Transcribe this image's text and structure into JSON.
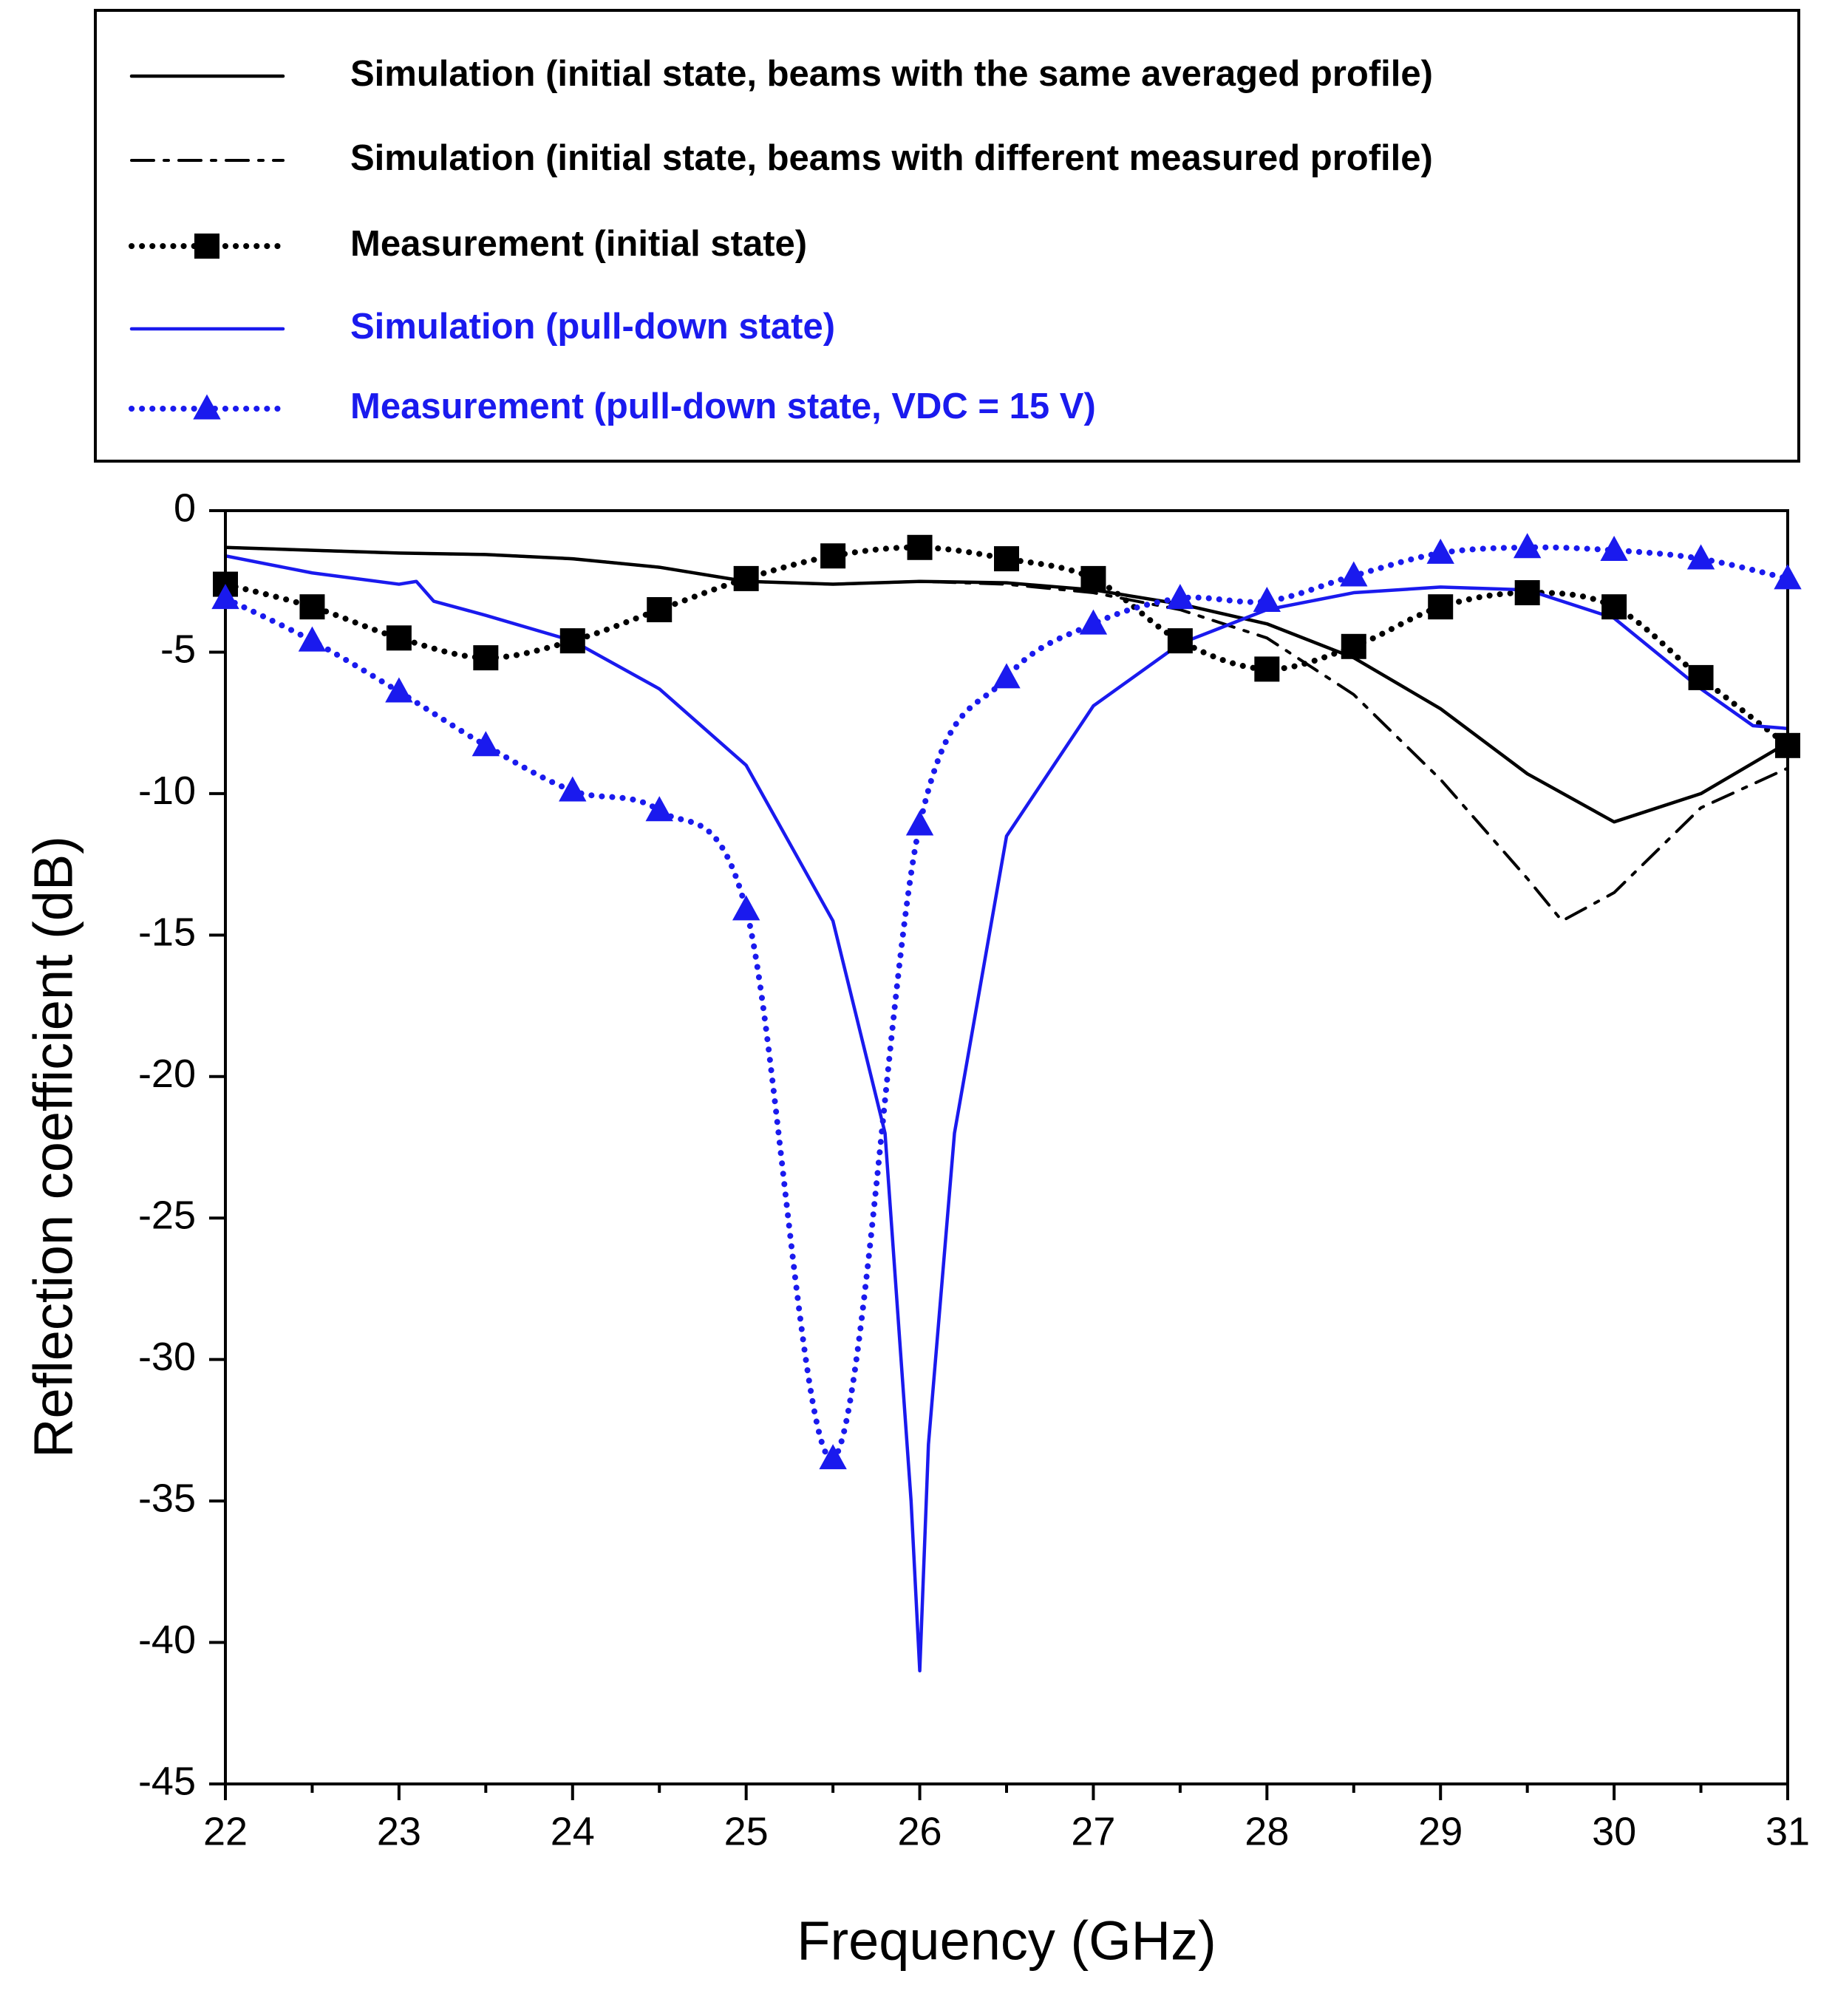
{
  "chart_data": {
    "type": "line",
    "xlabel": "Frequency (GHz)",
    "ylabel": "Reflection coefficient (dB)",
    "xlim": [
      22,
      31
    ],
    "ylim": [
      -45,
      0
    ],
    "xticks": [
      22,
      23,
      24,
      25,
      26,
      27,
      28,
      29,
      30,
      31
    ],
    "xminorticks": [
      22.5,
      23.5,
      24.5,
      25.5,
      26.5,
      27.5,
      28.5,
      29.5,
      30.5
    ],
    "yticks": [
      -45,
      -40,
      -35,
      -30,
      -25,
      -20,
      -15,
      -10,
      -5,
      0
    ],
    "legend": "top",
    "series": [
      {
        "name": "Simulation (initial state, beams with the same averaged profile)",
        "color": "#000000",
        "style": "solid",
        "marker": "none",
        "x": [
          22,
          22.5,
          23,
          23.5,
          24,
          24.5,
          25,
          25.5,
          26,
          26.5,
          27,
          27.5,
          28,
          28.5,
          29,
          29.5,
          30,
          30.5,
          31
        ],
        "values": [
          -1.3,
          -1.4,
          -1.5,
          -1.55,
          -1.7,
          -2.0,
          -2.5,
          -2.6,
          -2.5,
          -2.55,
          -2.8,
          -3.3,
          -4.0,
          -5.2,
          -7.0,
          -9.3,
          -11.0,
          -10.0,
          -8.2
        ]
      },
      {
        "name": "Simulation (initial state, beams with different measured profile)",
        "color": "#000000",
        "style": "dashdot",
        "marker": "none",
        "x": [
          22,
          22.5,
          23,
          23.5,
          24,
          24.5,
          25,
          25.5,
          26,
          26.5,
          27,
          27.5,
          28,
          28.5,
          29,
          29.5,
          29.7,
          30,
          30.5,
          31
        ],
        "values": [
          -1.3,
          -1.4,
          -1.5,
          -1.55,
          -1.7,
          -2.0,
          -2.5,
          -2.6,
          -2.5,
          -2.6,
          -2.9,
          -3.5,
          -4.5,
          -6.5,
          -9.5,
          -13.0,
          -14.5,
          -13.5,
          -10.5,
          -9.1
        ]
      },
      {
        "name": "Measurement (initial state)",
        "color": "#000000",
        "style": "dot",
        "marker": "square",
        "x": [
          22,
          22.5,
          23,
          23.5,
          24,
          24.5,
          25,
          25.5,
          26,
          26.5,
          27,
          27.5,
          28,
          28.5,
          29,
          29.5,
          30,
          30.5,
          31
        ],
        "values": [
          -2.6,
          -3.4,
          -4.5,
          -5.2,
          -4.6,
          -3.5,
          -2.4,
          -1.6,
          -1.3,
          -1.7,
          -2.4,
          -4.6,
          -5.6,
          -4.8,
          -3.4,
          -2.9,
          -3.4,
          -5.9,
          -8.3
        ]
      },
      {
        "name": "Simulation (pull-down state)",
        "color": "#1a1aee",
        "style": "solid",
        "marker": "none",
        "x": [
          22,
          22.5,
          23,
          23.1,
          23.2,
          23.5,
          24,
          24.5,
          25,
          25.5,
          25.8,
          25.95,
          26,
          26.05,
          26.2,
          26.5,
          27,
          27.5,
          28,
          28.5,
          29,
          29.5,
          30,
          30.5,
          30.8,
          31
        ],
        "values": [
          -1.6,
          -2.2,
          -2.6,
          -2.5,
          -3.2,
          -3.7,
          -4.6,
          -6.3,
          -9.0,
          -14.5,
          -22,
          -35,
          -41,
          -33,
          -22,
          -11.5,
          -6.9,
          -4.7,
          -3.5,
          -2.9,
          -2.7,
          -2.8,
          -3.8,
          -6.3,
          -7.6,
          -7.7
        ]
      },
      {
        "name": "Measurement (pull-down state, VDC = 15 V)",
        "color": "#1a1aee",
        "style": "dot",
        "marker": "triangle",
        "x": [
          22,
          22.5,
          23,
          23.5,
          24,
          24.5,
          25,
          25.5,
          26,
          26.5,
          27,
          27.5,
          28,
          28.5,
          29,
          29.5,
          30,
          30.5,
          31
        ],
        "values": [
          -3.1,
          -4.6,
          -6.4,
          -8.3,
          -9.9,
          -10.6,
          -14.1,
          -33.5,
          -11.1,
          -5.9,
          -4.0,
          -3.1,
          -3.2,
          -2.3,
          -1.5,
          -1.3,
          -1.4,
          -1.7,
          -2.4
        ]
      }
    ]
  }
}
